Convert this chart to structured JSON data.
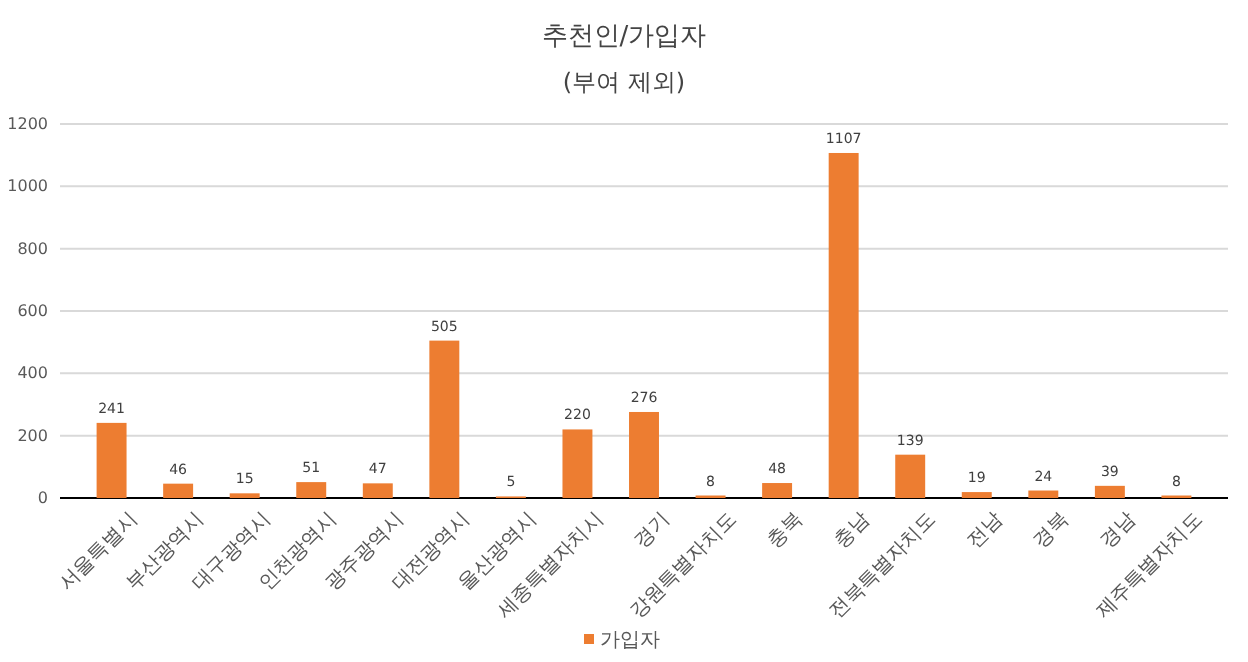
{
  "chart_data": {
    "type": "bar",
    "title": "추천인/가입자",
    "subtitle": "(부여 제외)",
    "categories": [
      "서울특별시",
      "부산광역시",
      "대구광역시",
      "인천광역시",
      "광주광역시",
      "대전광역시",
      "울산광역시",
      "세종특별자치시",
      "경기",
      "강원특별자치도",
      "충북",
      "충남",
      "전북특별자치도",
      "전남",
      "경북",
      "경남",
      "제주특별자치도"
    ],
    "series": [
      {
        "name": "가입자",
        "color": "#ed7d31",
        "values": [
          241,
          46,
          15,
          51,
          47,
          505,
          5,
          220,
          276,
          8,
          48,
          1107,
          139,
          19,
          24,
          39,
          8
        ]
      }
    ],
    "ylim": [
      0,
      1200
    ],
    "yticks": [
      0,
      200,
      400,
      600,
      800,
      1000,
      1200
    ],
    "grid": "y",
    "legend": "bottom",
    "data_labels": true
  }
}
